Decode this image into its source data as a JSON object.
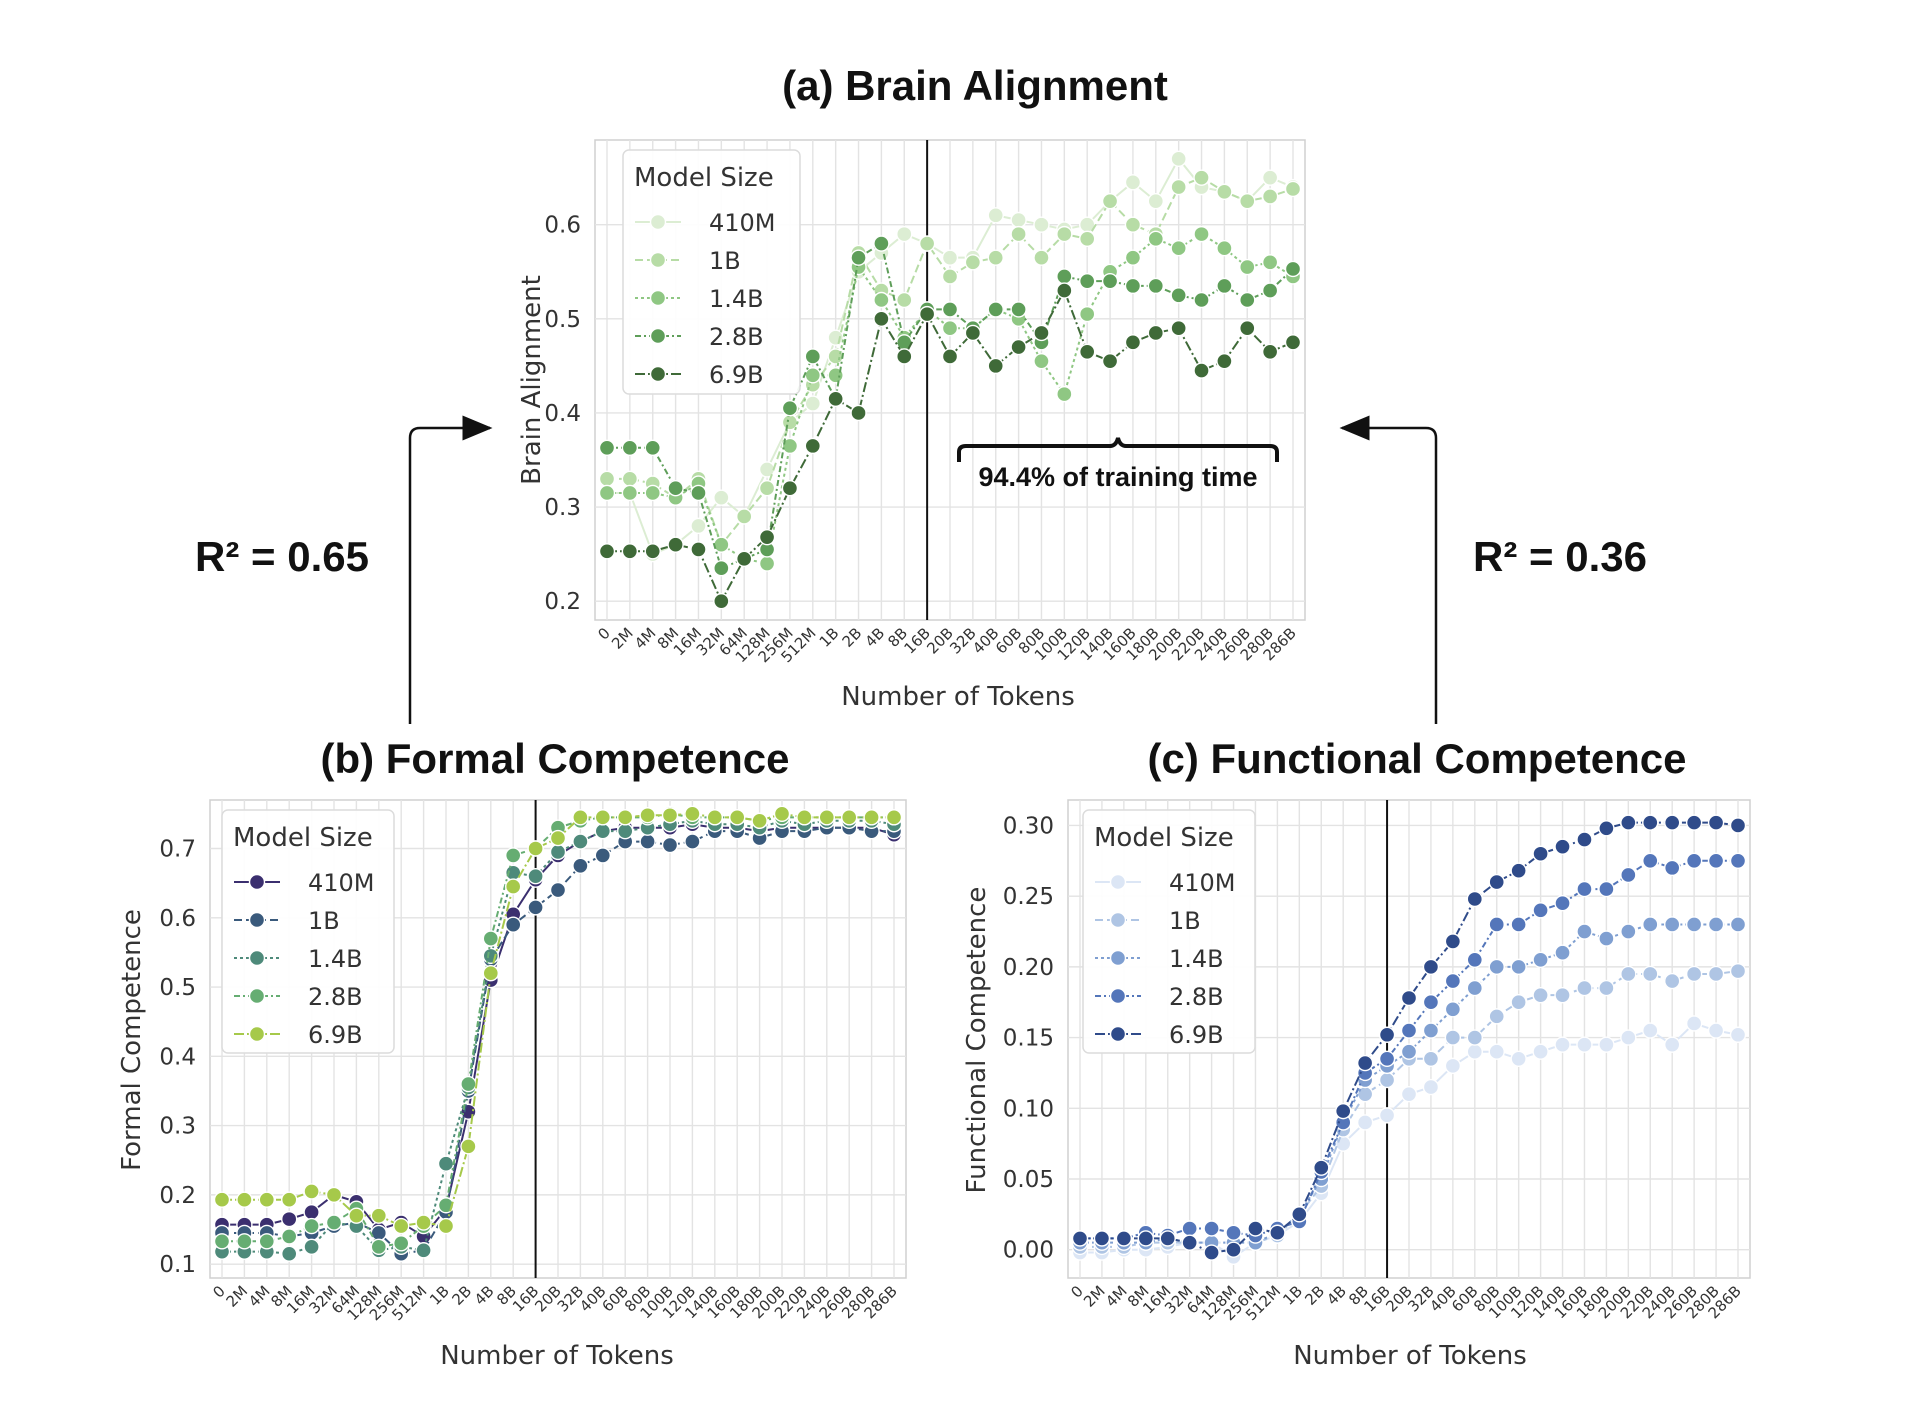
{
  "r2_left": "R² = 0.65",
  "r2_right": "R² = 0.36",
  "annotation": "94.4% of training time",
  "tokens": [
    "0",
    "2M",
    "4M",
    "8M",
    "16M",
    "32M",
    "64M",
    "128M",
    "256M",
    "512M",
    "1B",
    "2B",
    "4B",
    "8B",
    "16B",
    "20B",
    "32B",
    "40B",
    "60B",
    "80B",
    "100B",
    "120B",
    "140B",
    "160B",
    "180B",
    "200B",
    "220B",
    "240B",
    "260B",
    "280B",
    "286B"
  ],
  "legend_title": "Model Size",
  "chart_data": [
    {
      "id": "a",
      "type": "line",
      "title": "(a) Brain Alignment",
      "xlabel": "Number of Tokens",
      "ylabel": "Brain Alignment",
      "ylim": [
        0.18,
        0.69
      ],
      "yticks": [
        0.2,
        0.3,
        0.4,
        0.5,
        0.6
      ],
      "ytick_labels": [
        "0.2",
        "0.3",
        "0.4",
        "0.5",
        "0.6"
      ],
      "grid": true,
      "vline_at": "16B",
      "legend_position": "top-left",
      "series": [
        {
          "name": "410M",
          "color": "#dcedd3",
          "dash": "",
          "values": [
            0.315,
            0.315,
            0.25,
            0.26,
            0.28,
            0.31,
            0.29,
            0.34,
            0.39,
            0.41,
            0.48,
            0.55,
            0.57,
            0.59,
            0.58,
            0.565,
            0.565,
            0.61,
            0.605,
            0.6,
            0.595,
            0.6,
            0.625,
            0.645,
            0.625,
            0.67,
            0.64,
            0.635,
            0.625,
            0.65,
            0.64
          ]
        },
        {
          "name": "1B",
          "color": "#b7dca6",
          "dash": "8,4",
          "values": [
            0.33,
            0.33,
            0.325,
            0.31,
            0.33,
            0.26,
            0.29,
            0.32,
            0.39,
            0.43,
            0.46,
            0.57,
            0.53,
            0.52,
            0.58,
            0.545,
            0.56,
            0.565,
            0.59,
            0.565,
            0.59,
            0.585,
            0.625,
            0.6,
            0.59,
            0.64,
            0.65,
            0.635,
            0.625,
            0.63,
            0.638
          ]
        },
        {
          "name": "1.4B",
          "color": "#8fc783",
          "dash": "3,3",
          "values": [
            0.315,
            0.315,
            0.315,
            0.31,
            0.325,
            0.26,
            0.245,
            0.24,
            0.365,
            0.44,
            0.44,
            0.555,
            0.52,
            0.48,
            0.51,
            0.49,
            0.49,
            0.51,
            0.5,
            0.455,
            0.42,
            0.505,
            0.55,
            0.565,
            0.585,
            0.575,
            0.59,
            0.575,
            0.555,
            0.56,
            0.545
          ]
        },
        {
          "name": "2.8B",
          "color": "#5e9e59",
          "dash": "6,3,2,3",
          "values": [
            0.363,
            0.363,
            0.363,
            0.32,
            0.315,
            0.235,
            0.245,
            0.255,
            0.405,
            0.46,
            0.415,
            0.565,
            0.58,
            0.475,
            0.51,
            0.51,
            0.49,
            0.51,
            0.51,
            0.475,
            0.545,
            0.54,
            0.54,
            0.535,
            0.535,
            0.525,
            0.52,
            0.535,
            0.52,
            0.53,
            0.553
          ]
        },
        {
          "name": "6.9B",
          "color": "#3f6a38",
          "dash": "10,3,2,3",
          "values": [
            0.253,
            0.253,
            0.253,
            0.26,
            0.255,
            0.2,
            0.245,
            0.268,
            0.32,
            0.365,
            0.415,
            0.4,
            0.5,
            0.46,
            0.505,
            0.46,
            0.485,
            0.45,
            0.47,
            0.485,
            0.53,
            0.465,
            0.455,
            0.475,
            0.485,
            0.49,
            0.445,
            0.455,
            0.49,
            0.465,
            0.475
          ]
        }
      ]
    },
    {
      "id": "b",
      "type": "line",
      "title": "(b) Formal Competence",
      "xlabel": "Number of Tokens",
      "ylabel": "Formal Competence",
      "ylim": [
        0.08,
        0.77
      ],
      "yticks": [
        0.1,
        0.2,
        0.3,
        0.4,
        0.5,
        0.6,
        0.7
      ],
      "ytick_labels": [
        "0.1",
        "0.2",
        "0.3",
        "0.4",
        "0.5",
        "0.6",
        "0.7"
      ],
      "grid": true,
      "vline_at": "16B",
      "legend_position": "top-left",
      "series": [
        {
          "name": "410M",
          "color": "#3b2f6f",
          "dash": "",
          "values": [
            0.157,
            0.157,
            0.157,
            0.165,
            0.175,
            0.2,
            0.19,
            0.15,
            0.16,
            0.14,
            0.18,
            0.32,
            0.51,
            0.605,
            0.655,
            0.69,
            0.71,
            0.725,
            0.73,
            0.73,
            0.73,
            0.735,
            0.73,
            0.73,
            0.725,
            0.73,
            0.73,
            0.73,
            0.73,
            0.73,
            0.72
          ]
        },
        {
          "name": "1B",
          "color": "#3a5a7c",
          "dash": "8,4",
          "values": [
            0.145,
            0.145,
            0.145,
            0.14,
            0.145,
            0.155,
            0.16,
            0.145,
            0.115,
            0.12,
            0.175,
            0.35,
            0.54,
            0.59,
            0.615,
            0.64,
            0.675,
            0.69,
            0.71,
            0.71,
            0.705,
            0.71,
            0.725,
            0.725,
            0.715,
            0.725,
            0.725,
            0.73,
            0.73,
            0.725,
            0.725
          ]
        },
        {
          "name": "1.4B",
          "color": "#4e8a7a",
          "dash": "3,3",
          "values": [
            0.118,
            0.118,
            0.118,
            0.115,
            0.125,
            0.16,
            0.155,
            0.12,
            0.125,
            0.12,
            0.245,
            0.355,
            0.545,
            0.665,
            0.66,
            0.695,
            0.71,
            0.725,
            0.725,
            0.73,
            0.735,
            0.74,
            0.735,
            0.735,
            0.73,
            0.74,
            0.735,
            0.74,
            0.74,
            0.74,
            0.735
          ]
        },
        {
          "name": "2.8B",
          "color": "#66ad72",
          "dash": "6,3,2,3",
          "values": [
            0.133,
            0.133,
            0.133,
            0.14,
            0.155,
            0.16,
            0.18,
            0.125,
            0.13,
            0.155,
            0.185,
            0.36,
            0.57,
            0.69,
            0.7,
            0.73,
            0.74,
            0.745,
            0.745,
            0.745,
            0.75,
            0.745,
            0.745,
            0.745,
            0.74,
            0.745,
            0.745,
            0.745,
            0.745,
            0.745,
            0.745
          ]
        },
        {
          "name": "6.9B",
          "color": "#a6c94a",
          "dash": "10,3,2,3",
          "values": [
            0.193,
            0.193,
            0.193,
            0.193,
            0.205,
            0.2,
            0.17,
            0.17,
            0.155,
            0.16,
            0.155,
            0.27,
            0.52,
            0.645,
            0.7,
            0.715,
            0.745,
            0.745,
            0.745,
            0.748,
            0.748,
            0.75,
            0.745,
            0.745,
            0.74,
            0.75,
            0.745,
            0.745,
            0.745,
            0.745,
            0.745
          ]
        }
      ]
    },
    {
      "id": "c",
      "type": "line",
      "title": "(c) Functional Competence",
      "xlabel": "Number of Tokens",
      "ylabel": "Functional Competence",
      "ylim": [
        -0.02,
        0.318
      ],
      "yticks": [
        0.0,
        0.05,
        0.1,
        0.15,
        0.2,
        0.25,
        0.3
      ],
      "ytick_labels": [
        "0.00",
        "0.05",
        "0.10",
        "0.15",
        "0.20",
        "0.25",
        "0.30"
      ],
      "grid": true,
      "vline_at": "16B",
      "legend_position": "top-left",
      "series": [
        {
          "name": "410M",
          "color": "#dce6f5",
          "dash": "",
          "values": [
            -0.002,
            -0.002,
            0.0,
            0.0,
            0.002,
            0.005,
            0.005,
            -0.005,
            0.005,
            0.01,
            0.02,
            0.04,
            0.075,
            0.09,
            0.095,
            0.11,
            0.115,
            0.13,
            0.14,
            0.14,
            0.135,
            0.14,
            0.145,
            0.145,
            0.145,
            0.15,
            0.155,
            0.145,
            0.16,
            0.155,
            0.152
          ]
        },
        {
          "name": "1B",
          "color": "#afc5e4",
          "dash": "8,4",
          "values": [
            0.002,
            0.002,
            0.002,
            0.005,
            0.005,
            0.005,
            0.005,
            0.005,
            0.005,
            0.01,
            0.025,
            0.045,
            0.085,
            0.11,
            0.12,
            0.135,
            0.135,
            0.15,
            0.15,
            0.165,
            0.175,
            0.18,
            0.18,
            0.185,
            0.185,
            0.195,
            0.195,
            0.19,
            0.195,
            0.195,
            0.197
          ]
        },
        {
          "name": "1.4B",
          "color": "#7f9fd1",
          "dash": "3,3",
          "values": [
            0.005,
            0.005,
            0.005,
            0.005,
            0.008,
            0.005,
            0.005,
            0.005,
            0.005,
            0.012,
            0.025,
            0.05,
            0.09,
            0.12,
            0.13,
            0.14,
            0.155,
            0.17,
            0.185,
            0.2,
            0.2,
            0.205,
            0.21,
            0.225,
            0.22,
            0.225,
            0.23,
            0.23,
            0.23,
            0.23,
            0.23
          ]
        },
        {
          "name": "2.8B",
          "color": "#5476ba",
          "dash": "6,3,2,3",
          "values": [
            0.008,
            0.008,
            0.008,
            0.012,
            0.01,
            0.015,
            0.015,
            0.012,
            0.01,
            0.015,
            0.02,
            0.055,
            0.09,
            0.125,
            0.135,
            0.155,
            0.175,
            0.19,
            0.205,
            0.23,
            0.23,
            0.24,
            0.245,
            0.255,
            0.255,
            0.265,
            0.275,
            0.27,
            0.275,
            0.275,
            0.275
          ]
        },
        {
          "name": "6.9B",
          "color": "#2f4b8a",
          "dash": "10,3,2,3",
          "values": [
            0.008,
            0.008,
            0.008,
            0.008,
            0.008,
            0.005,
            -0.002,
            0.0,
            0.015,
            0.012,
            0.025,
            0.058,
            0.098,
            0.132,
            0.152,
            0.178,
            0.2,
            0.218,
            0.248,
            0.26,
            0.268,
            0.28,
            0.285,
            0.29,
            0.298,
            0.302,
            0.302,
            0.302,
            0.302,
            0.302,
            0.3
          ]
        }
      ]
    }
  ]
}
